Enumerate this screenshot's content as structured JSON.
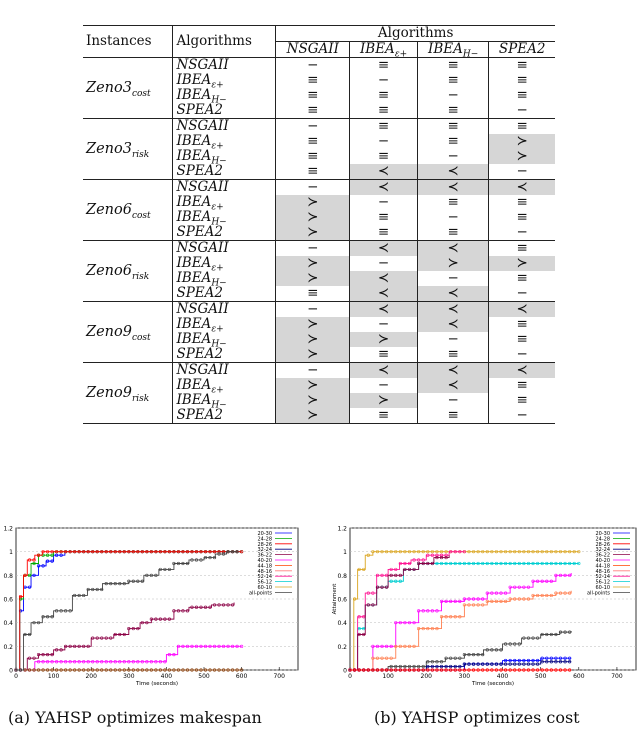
{
  "top_caption": "Algorithms",
  "table": {
    "header_instances": "Instances",
    "header_algorithms": "Algorithms",
    "header_group": "Algorithms",
    "col_headers": [
      "NSGAII",
      "IBEAε+",
      "IBEAH−",
      "SPEA2"
    ],
    "groups": [
      {
        "instance": "Zeno3cost",
        "rows": [
          {
            "alg": "NSGAII",
            "cells": [
              "−",
              "≡",
              "≡",
              "≡"
            ],
            "shade": [
              0,
              0,
              0,
              0
            ]
          },
          {
            "alg": "IBEAε+",
            "cells": [
              "≡",
              "−",
              "≡",
              "≡"
            ],
            "shade": [
              0,
              0,
              0,
              0
            ]
          },
          {
            "alg": "IBEAH−",
            "cells": [
              "≡",
              "≡",
              "−",
              "≡"
            ],
            "shade": [
              0,
              0,
              0,
              0
            ]
          },
          {
            "alg": "SPEA2",
            "cells": [
              "≡",
              "≡",
              "≡",
              "−"
            ],
            "shade": [
              0,
              0,
              0,
              0
            ]
          }
        ]
      },
      {
        "instance": "Zeno3risk",
        "rows": [
          {
            "alg": "NSGAII",
            "cells": [
              "−",
              "≡",
              "≡",
              "≡"
            ],
            "shade": [
              0,
              0,
              0,
              0
            ]
          },
          {
            "alg": "IBEAε+",
            "cells": [
              "≡",
              "−",
              "≡",
              "≻"
            ],
            "shade": [
              0,
              0,
              0,
              1
            ]
          },
          {
            "alg": "IBEAH−",
            "cells": [
              "≡",
              "≡",
              "−",
              "≻"
            ],
            "shade": [
              0,
              0,
              0,
              1
            ]
          },
          {
            "alg": "SPEA2",
            "cells": [
              "≡",
              "≺",
              "≺",
              "−"
            ],
            "shade": [
              0,
              1,
              1,
              0
            ]
          }
        ]
      },
      {
        "instance": "Zeno6cost",
        "rows": [
          {
            "alg": "NSGAII",
            "cells": [
              "−",
              "≺",
              "≺",
              "≺"
            ],
            "shade": [
              0,
              1,
              1,
              1
            ]
          },
          {
            "alg": "IBEAε+",
            "cells": [
              "≻",
              "−",
              "≡",
              "≡"
            ],
            "shade": [
              1,
              0,
              0,
              0
            ]
          },
          {
            "alg": "IBEAH−",
            "cells": [
              "≻",
              "≡",
              "−",
              "≡"
            ],
            "shade": [
              1,
              0,
              0,
              0
            ]
          },
          {
            "alg": "SPEA2",
            "cells": [
              "≻",
              "≡",
              "≡",
              "−"
            ],
            "shade": [
              1,
              0,
              0,
              0
            ]
          }
        ]
      },
      {
        "instance": "Zeno6risk",
        "rows": [
          {
            "alg": "NSGAII",
            "cells": [
              "−",
              "≺",
              "≺",
              "≡"
            ],
            "shade": [
              0,
              1,
              1,
              0
            ]
          },
          {
            "alg": "IBEAε+",
            "cells": [
              "≻",
              "−",
              "≻",
              "≻"
            ],
            "shade": [
              1,
              0,
              1,
              1
            ]
          },
          {
            "alg": "IBEAH−",
            "cells": [
              "≻",
              "≺",
              "−",
              "≡"
            ],
            "shade": [
              1,
              1,
              0,
              0
            ]
          },
          {
            "alg": "SPEA2",
            "cells": [
              "≡",
              "≺",
              "≺",
              "−"
            ],
            "shade": [
              0,
              1,
              1,
              0
            ]
          }
        ]
      },
      {
        "instance": "Zeno9cost",
        "rows": [
          {
            "alg": "NSGAII",
            "cells": [
              "−",
              "≺",
              "≺",
              "≺"
            ],
            "shade": [
              0,
              1,
              1,
              1
            ]
          },
          {
            "alg": "IBEAε+",
            "cells": [
              "≻",
              "−",
              "≺",
              "≡"
            ],
            "shade": [
              1,
              0,
              1,
              0
            ]
          },
          {
            "alg": "IBEAH−",
            "cells": [
              "≻",
              "≻",
              "−",
              "≡"
            ],
            "shade": [
              1,
              1,
              0,
              0
            ]
          },
          {
            "alg": "SPEA2",
            "cells": [
              "≻",
              "≡",
              "≡",
              "−"
            ],
            "shade": [
              1,
              0,
              0,
              0
            ]
          }
        ]
      },
      {
        "instance": "Zeno9risk",
        "rows": [
          {
            "alg": "NSGAII",
            "cells": [
              "−",
              "≺",
              "≺",
              "≺"
            ],
            "shade": [
              0,
              1,
              1,
              1
            ]
          },
          {
            "alg": "IBEAε+",
            "cells": [
              "≻",
              "−",
              "≺",
              "≡"
            ],
            "shade": [
              1,
              0,
              1,
              0
            ]
          },
          {
            "alg": "IBEAH−",
            "cells": [
              "≻",
              "≻",
              "−",
              "≡"
            ],
            "shade": [
              1,
              1,
              0,
              0
            ]
          },
          {
            "alg": "SPEA2",
            "cells": [
              "≻",
              "≡",
              "≡",
              "−"
            ],
            "shade": [
              1,
              0,
              0,
              0
            ]
          }
        ]
      }
    ]
  },
  "chart_data": [
    {
      "type": "line",
      "caption": "(a) YAHSP optimizes makespan",
      "xlabel": "Time (seconds)",
      "ylabel": "",
      "xlim": [
        0,
        750
      ],
      "ylim": [
        0,
        1.2
      ],
      "xticks": [
        0,
        100,
        200,
        300,
        400,
        500,
        600,
        700
      ],
      "yticks": [
        "0",
        "0.2",
        "0.4",
        "0.6",
        "0.8",
        "1",
        "1.2"
      ],
      "legend": [
        "20-30",
        "24-28",
        "28-26",
        "32-24",
        "36-22",
        "40-20",
        "44-18",
        "48-16",
        "52-14",
        "56-12",
        "60-10",
        "all-points"
      ],
      "legend_colors": [
        "#0000ff",
        "#00aa00",
        "#ff0000",
        "#000080",
        "#8b0045",
        "#ff00ff",
        "#ff4500",
        "#ff7f7f",
        "#ff1493",
        "#00ced1",
        "#daa520",
        "#444444"
      ],
      "series": [
        {
          "name": "20-30",
          "color": "#0000ff",
          "x": [
            0,
            10,
            20,
            40,
            60,
            80,
            100,
            130,
            600
          ],
          "y": [
            0,
            0.5,
            0.7,
            0.8,
            0.88,
            0.92,
            0.97,
            1,
            1
          ]
        },
        {
          "name": "24-28",
          "color": "#00aa00",
          "x": [
            0,
            10,
            20,
            40,
            60,
            100,
            130,
            600
          ],
          "y": [
            0,
            0.6,
            0.8,
            0.9,
            0.97,
            1,
            1,
            1
          ]
        },
        {
          "name": "28-26",
          "color": "#ff0000",
          "x": [
            0,
            10,
            20,
            30,
            50,
            70,
            600
          ],
          "y": [
            0,
            0.62,
            0.8,
            0.93,
            0.97,
            1,
            1
          ]
        },
        {
          "name": "36-22",
          "color": "#8b0045",
          "x": [
            0,
            30,
            60,
            100,
            130,
            160,
            200,
            260,
            300,
            330,
            360,
            420,
            460,
            520,
            580
          ],
          "y": [
            0,
            0.1,
            0.13,
            0.17,
            0.2,
            0.2,
            0.27,
            0.3,
            0.35,
            0.4,
            0.43,
            0.5,
            0.53,
            0.55,
            0.57
          ]
        },
        {
          "name": "40-20",
          "color": "#ff00ff",
          "x": [
            0,
            50,
            150,
            300,
            400,
            430,
            480,
            600
          ],
          "y": [
            0,
            0.07,
            0.07,
            0.07,
            0.13,
            0.2,
            0.2,
            0.2
          ]
        },
        {
          "name": "44-18",
          "color": "#8b4513",
          "x": [
            0,
            600
          ],
          "y": [
            0,
            0
          ]
        },
        {
          "name": "all-points",
          "color": "#444444",
          "x": [
            0,
            20,
            40,
            70,
            100,
            150,
            190,
            230,
            260,
            300,
            340,
            380,
            420,
            460,
            500,
            530,
            560,
            590
          ],
          "y": [
            0,
            0.3,
            0.4,
            0.45,
            0.5,
            0.63,
            0.68,
            0.73,
            0.73,
            0.75,
            0.8,
            0.85,
            0.9,
            0.93,
            0.95,
            0.98,
            1,
            1
          ]
        }
      ]
    },
    {
      "type": "line",
      "caption": "(b) YAHSP optimizes cost",
      "xlabel": "Time (seconds)",
      "ylabel": "Attainment",
      "xlim": [
        0,
        750
      ],
      "ylim": [
        0,
        1.2
      ],
      "xticks": [
        0,
        100,
        200,
        300,
        400,
        500,
        600,
        700
      ],
      "yticks": [
        "0",
        "0.2",
        "0.4",
        "0.6",
        "0.8",
        "1",
        "1.2"
      ],
      "legend": [
        "20-30",
        "24-28",
        "28-26",
        "32-24",
        "36-22",
        "40-20",
        "44-18",
        "48-16",
        "52-14",
        "56-12",
        "60-10",
        "all-points"
      ],
      "legend_colors": [
        "#0000ff",
        "#00aa00",
        "#ff0000",
        "#000080",
        "#8b0045",
        "#ff00ff",
        "#ff4500",
        "#ff7f7f",
        "#ff1493",
        "#00ced1",
        "#daa520",
        "#444444"
      ],
      "series": [
        {
          "name": "60-10",
          "color": "#daa520",
          "x": [
            0,
            10,
            20,
            40,
            60,
            600
          ],
          "y": [
            0,
            0.6,
            0.85,
            0.97,
            1,
            1
          ]
        },
        {
          "name": "56-12",
          "color": "#00ced1",
          "x": [
            0,
            20,
            40,
            70,
            100,
            140,
            180,
            600
          ],
          "y": [
            0,
            0.35,
            0.55,
            0.7,
            0.75,
            0.85,
            0.9,
            0.9
          ]
        },
        {
          "name": "52-14",
          "color": "#ff1493",
          "x": [
            0,
            20,
            40,
            70,
            100,
            130,
            160,
            200,
            260,
            300
          ],
          "y": [
            0,
            0.45,
            0.65,
            0.8,
            0.85,
            0.9,
            0.93,
            0.97,
            1,
            1
          ]
        },
        {
          "name": "44-18",
          "color": "#8b0045",
          "x": [
            0,
            20,
            40,
            70,
            100,
            140,
            180,
            220,
            260
          ],
          "y": [
            0,
            0.3,
            0.55,
            0.7,
            0.8,
            0.85,
            0.9,
            0.95,
            0.97
          ]
        },
        {
          "name": "40-20",
          "color": "#ff00ff",
          "x": [
            0,
            60,
            120,
            180,
            240,
            300,
            360,
            420,
            480,
            540,
            580
          ],
          "y": [
            0,
            0.2,
            0.4,
            0.5,
            0.58,
            0.6,
            0.65,
            0.7,
            0.75,
            0.8,
            0.82
          ]
        },
        {
          "name": "48-16",
          "color": "#ff7f50",
          "x": [
            0,
            60,
            120,
            180,
            240,
            300,
            360,
            420,
            480,
            540,
            580
          ],
          "y": [
            0,
            0.1,
            0.2,
            0.35,
            0.45,
            0.55,
            0.58,
            0.6,
            0.63,
            0.65,
            0.67
          ]
        },
        {
          "name": "all-points",
          "color": "#444444",
          "x": [
            0,
            100,
            200,
            250,
            300,
            350,
            400,
            450,
            500,
            550,
            580
          ],
          "y": [
            0,
            0.03,
            0.07,
            0.1,
            0.13,
            0.17,
            0.22,
            0.27,
            0.3,
            0.32,
            0.33
          ]
        },
        {
          "name": "20-30",
          "color": "#0000ff",
          "x": [
            0,
            300,
            400,
            500,
            580
          ],
          "y": [
            0,
            0.05,
            0.08,
            0.1,
            0.1
          ]
        },
        {
          "name": "32-24",
          "color": "#000080",
          "x": [
            0,
            200,
            300,
            500,
            580
          ],
          "y": [
            0,
            0.03,
            0.05,
            0.07,
            0.07
          ]
        },
        {
          "name": "28-26",
          "color": "#ff0000",
          "x": [
            0,
            580
          ],
          "y": [
            0,
            0
          ]
        }
      ]
    }
  ],
  "captions": {
    "a": "(a) YAHSP optimizes makespan",
    "b": "(b) YAHSP optimizes cost"
  }
}
